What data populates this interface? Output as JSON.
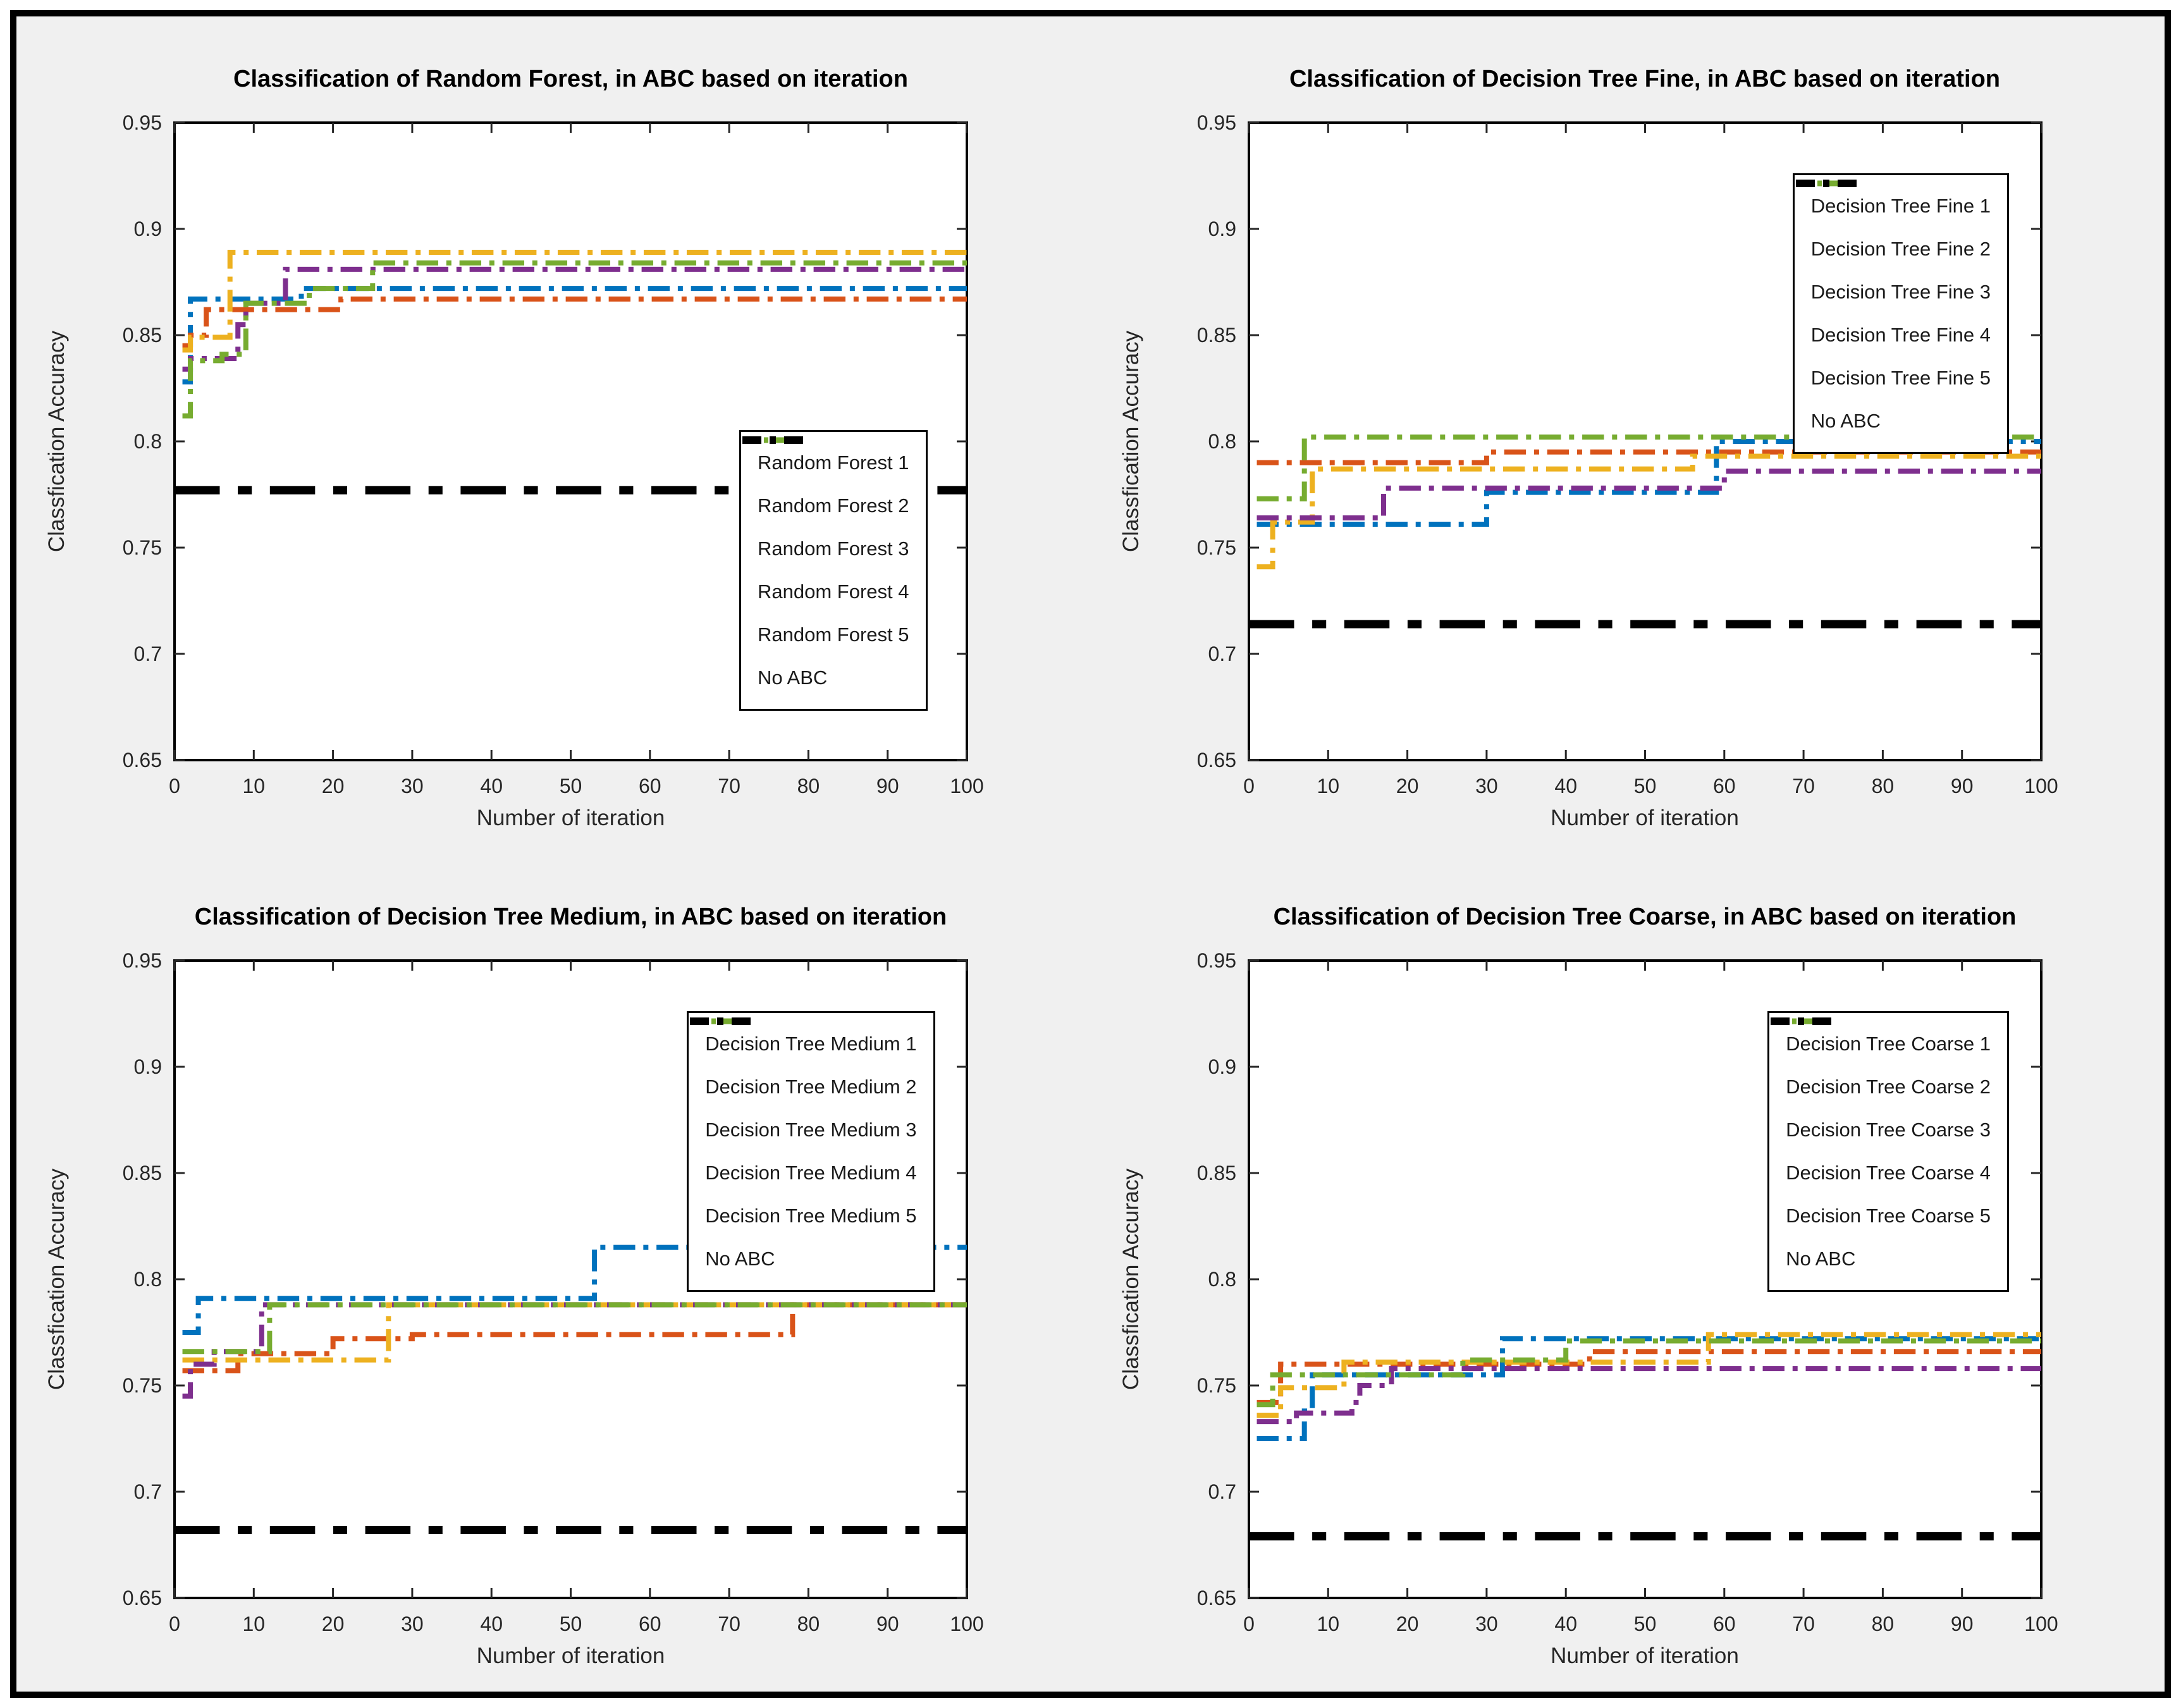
{
  "figure": {
    "background_color": "#F0F0F0",
    "border_color": "#000000",
    "axes_background": "#FFFFFF"
  },
  "palette": {
    "blue": "#0072BD",
    "orange": "#D95319",
    "yellow": "#EDB120",
    "purple": "#7E2F8E",
    "green": "#77AC30",
    "black": "#000000"
  },
  "chart_data": [
    {
      "type": "line",
      "title": "Classification of Random Forest, in ABC based on iteration",
      "xlabel": "Number of iteration",
      "ylabel": "Classfication Accuracy",
      "xlim": [
        0,
        100
      ],
      "ylim": [
        0.65,
        0.95
      ],
      "x_ticks": [
        0,
        10,
        20,
        30,
        40,
        50,
        60,
        70,
        80,
        90,
        100
      ],
      "y_ticks": [
        0.65,
        0.7,
        0.75,
        0.8,
        0.85,
        0.9,
        0.95
      ],
      "grid": false,
      "line_style": "dash-dot",
      "legend_position": "lower-right",
      "series": [
        {
          "name": "Random Forest 1",
          "color": "blue",
          "width": 8,
          "points": [
            [
              1,
              0.828
            ],
            [
              2,
              0.867
            ],
            [
              16,
              0.872
            ],
            [
              100,
              0.872
            ]
          ]
        },
        {
          "name": "Random Forest 2",
          "color": "orange",
          "width": 8,
          "points": [
            [
              1,
              0.845
            ],
            [
              2,
              0.85
            ],
            [
              4,
              0.862
            ],
            [
              21,
              0.867
            ],
            [
              100,
              0.867
            ]
          ]
        },
        {
          "name": "Random Forest 3",
          "color": "yellow",
          "width": 8,
          "points": [
            [
              1,
              0.843
            ],
            [
              2,
              0.849
            ],
            [
              7,
              0.889
            ],
            [
              100,
              0.889
            ]
          ]
        },
        {
          "name": "Random Forest 4",
          "color": "purple",
          "width": 8,
          "points": [
            [
              1,
              0.834
            ],
            [
              2,
              0.839
            ],
            [
              8,
              0.855
            ],
            [
              9,
              0.865
            ],
            [
              14,
              0.881
            ],
            [
              100,
              0.881
            ]
          ]
        },
        {
          "name": "Random Forest 5",
          "color": "green",
          "width": 8,
          "points": [
            [
              1,
              0.812
            ],
            [
              2,
              0.838
            ],
            [
              6,
              0.841
            ],
            [
              9,
              0.865
            ],
            [
              17,
              0.872
            ],
            [
              25,
              0.884
            ],
            [
              100,
              0.884
            ]
          ]
        },
        {
          "name": "No ABC",
          "color": "black",
          "width": 13,
          "points": [
            [
              0,
              0.777
            ],
            [
              100,
              0.777
            ]
          ]
        }
      ]
    },
    {
      "type": "line",
      "title": "Classification of Decision Tree Fine, in ABC based on iteration",
      "xlabel": "Number of iteration",
      "ylabel": "Classfication Accuracy",
      "xlim": [
        0,
        100
      ],
      "ylim": [
        0.65,
        0.95
      ],
      "x_ticks": [
        0,
        10,
        20,
        30,
        40,
        50,
        60,
        70,
        80,
        90,
        100
      ],
      "y_ticks": [
        0.65,
        0.7,
        0.75,
        0.8,
        0.85,
        0.9,
        0.95
      ],
      "grid": false,
      "line_style": "dash-dot",
      "legend_position": "upper-right",
      "series": [
        {
          "name": "Decision Tree Fine 1",
          "color": "blue",
          "width": 8,
          "points": [
            [
              1,
              0.761
            ],
            [
              30,
              0.776
            ],
            [
              59,
              0.8
            ],
            [
              100,
              0.8
            ]
          ]
        },
        {
          "name": "Decision Tree Fine 2",
          "color": "orange",
          "width": 8,
          "points": [
            [
              1,
              0.79
            ],
            [
              30,
              0.795
            ],
            [
              100,
              0.795
            ]
          ]
        },
        {
          "name": "Decision Tree Fine 3",
          "color": "yellow",
          "width": 8,
          "points": [
            [
              1,
              0.741
            ],
            [
              3,
              0.762
            ],
            [
              8,
              0.787
            ],
            [
              56,
              0.793
            ],
            [
              100,
              0.793
            ]
          ]
        },
        {
          "name": "Decision Tree Fine 4",
          "color": "purple",
          "width": 8,
          "points": [
            [
              1,
              0.764
            ],
            [
              17,
              0.778
            ],
            [
              60,
              0.786
            ],
            [
              100,
              0.786
            ]
          ]
        },
        {
          "name": "Decision Tree Fine 5",
          "color": "green",
          "width": 8,
          "points": [
            [
              1,
              0.773
            ],
            [
              7,
              0.802
            ],
            [
              100,
              0.802
            ]
          ]
        },
        {
          "name": "No ABC",
          "color": "black",
          "width": 13,
          "points": [
            [
              0,
              0.714
            ],
            [
              100,
              0.714
            ]
          ]
        }
      ]
    },
    {
      "type": "line",
      "title": "Classification of Decision Tree Medium, in ABC based on iteration",
      "xlabel": "Number of iteration",
      "ylabel": "Classfication Accuracy",
      "xlim": [
        0,
        100
      ],
      "ylim": [
        0.65,
        0.95
      ],
      "x_ticks": [
        0,
        10,
        20,
        30,
        40,
        50,
        60,
        70,
        80,
        90,
        100
      ],
      "y_ticks": [
        0.65,
        0.7,
        0.75,
        0.8,
        0.85,
        0.9,
        0.95
      ],
      "grid": false,
      "line_style": "dash-dot",
      "legend_position": "upper-right",
      "series": [
        {
          "name": "Decision Tree Medium 1",
          "color": "blue",
          "width": 8,
          "points": [
            [
              1,
              0.775
            ],
            [
              3,
              0.791
            ],
            [
              53,
              0.815
            ],
            [
              100,
              0.815
            ]
          ]
        },
        {
          "name": "Decision Tree Medium 2",
          "color": "orange",
          "width": 8,
          "points": [
            [
              1,
              0.757
            ],
            [
              8,
              0.765
            ],
            [
              20,
              0.772
            ],
            [
              30,
              0.774
            ],
            [
              78,
              0.788
            ],
            [
              100,
              0.788
            ]
          ]
        },
        {
          "name": "Decision Tree Medium 3",
          "color": "yellow",
          "width": 8,
          "points": [
            [
              1,
              0.762
            ],
            [
              27,
              0.788
            ],
            [
              100,
              0.788
            ]
          ]
        },
        {
          "name": "Decision Tree Medium 4",
          "color": "purple",
          "width": 8,
          "points": [
            [
              1,
              0.745
            ],
            [
              2,
              0.76
            ],
            [
              5,
              0.766
            ],
            [
              11,
              0.788
            ],
            [
              100,
              0.788
            ]
          ]
        },
        {
          "name": "Decision Tree Medium 5",
          "color": "green",
          "width": 8,
          "points": [
            [
              1,
              0.766
            ],
            [
              12,
              0.788
            ],
            [
              100,
              0.788
            ]
          ]
        },
        {
          "name": "No ABC",
          "color": "black",
          "width": 13,
          "points": [
            [
              0,
              0.682
            ],
            [
              100,
              0.682
            ]
          ]
        }
      ]
    },
    {
      "type": "line",
      "title": "Classification of Decision Tree Coarse, in ABC based on iteration",
      "xlabel": "Number of iteration",
      "ylabel": "Classfication Accuracy",
      "xlim": [
        0,
        100
      ],
      "ylim": [
        0.65,
        0.95
      ],
      "x_ticks": [
        0,
        10,
        20,
        30,
        40,
        50,
        60,
        70,
        80,
        90,
        100
      ],
      "y_ticks": [
        0.65,
        0.7,
        0.75,
        0.8,
        0.85,
        0.9,
        0.95
      ],
      "grid": false,
      "line_style": "dash-dot",
      "legend_position": "upper-right",
      "series": [
        {
          "name": "Decision Tree Coarse 1",
          "color": "blue",
          "width": 8,
          "points": [
            [
              1,
              0.725
            ],
            [
              7,
              0.738
            ],
            [
              8,
              0.755
            ],
            [
              32,
              0.772
            ],
            [
              100,
              0.772
            ]
          ]
        },
        {
          "name": "Decision Tree Coarse 2",
          "color": "orange",
          "width": 8,
          "points": [
            [
              1,
              0.742
            ],
            [
              4,
              0.76
            ],
            [
              43,
              0.766
            ],
            [
              100,
              0.766
            ]
          ]
        },
        {
          "name": "Decision Tree Coarse 3",
          "color": "yellow",
          "width": 8,
          "points": [
            [
              1,
              0.736
            ],
            [
              4,
              0.749
            ],
            [
              12,
              0.761
            ],
            [
              58,
              0.774
            ],
            [
              100,
              0.774
            ]
          ]
        },
        {
          "name": "Decision Tree Coarse 4",
          "color": "purple",
          "width": 8,
          "points": [
            [
              1,
              0.733
            ],
            [
              6,
              0.737
            ],
            [
              13,
              0.742
            ],
            [
              14,
              0.75
            ],
            [
              18,
              0.758
            ],
            [
              100,
              0.758
            ]
          ]
        },
        {
          "name": "Decision Tree Coarse 5",
          "color": "green",
          "width": 8,
          "points": [
            [
              1,
              0.741
            ],
            [
              3,
              0.755
            ],
            [
              27,
              0.762
            ],
            [
              40,
              0.771
            ],
            [
              100,
              0.771
            ]
          ]
        },
        {
          "name": "No ABC",
          "color": "black",
          "width": 13,
          "points": [
            [
              0,
              0.679
            ],
            [
              100,
              0.679
            ]
          ]
        }
      ]
    }
  ]
}
